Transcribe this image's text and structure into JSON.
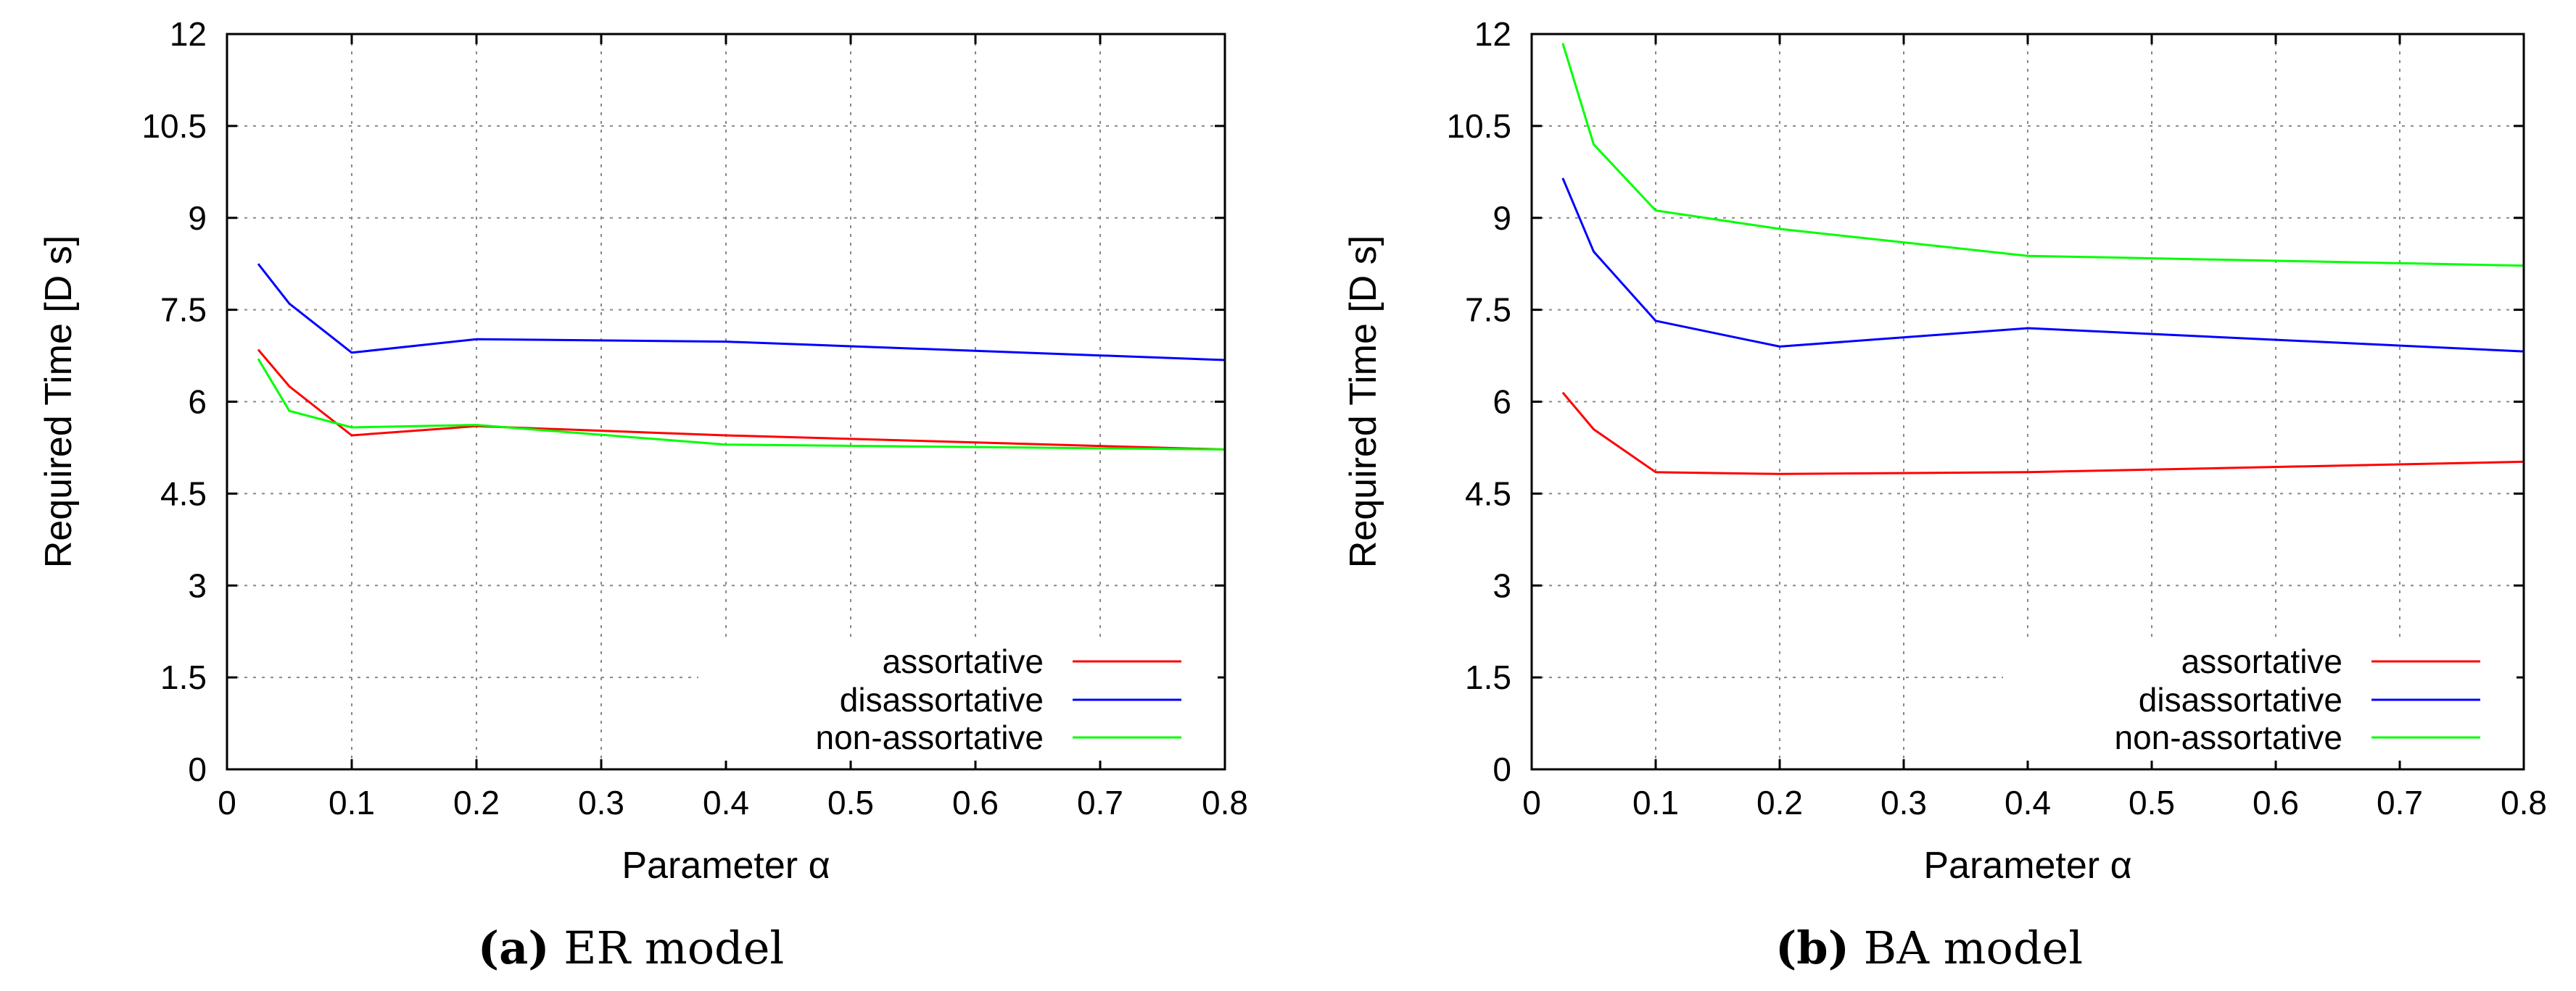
{
  "chart_data": [
    {
      "type": "line",
      "panel": "a",
      "caption_letter": "(a)",
      "caption_text": "ER model",
      "xlabel": "Parameter α",
      "ylabel": "Required Time [D s]",
      "xlim": [
        0,
        0.8
      ],
      "ylim": [
        0,
        12
      ],
      "xticks": [
        "0",
        "0.1",
        "0.2",
        "0.3",
        "0.4",
        "0.5",
        "0.6",
        "0.7",
        "0.8"
      ],
      "yticks": [
        "0",
        "1.5",
        "3",
        "4.5",
        "6",
        "7.5",
        "9",
        "10.5",
        "12"
      ],
      "grid": true,
      "legend_position": "bottom-right",
      "x": [
        0.025,
        0.05,
        0.1,
        0.2,
        0.4,
        0.8
      ],
      "series": [
        {
          "name": "assortative",
          "color": "#ff0000",
          "values": [
            6.85,
            6.25,
            5.45,
            5.6,
            5.45,
            5.22
          ]
        },
        {
          "name": "disassortative",
          "color": "#0000ff",
          "values": [
            8.25,
            7.6,
            6.8,
            7.02,
            6.98,
            6.68
          ]
        },
        {
          "name": "non-assortative",
          "color": "#00ff00",
          "values": [
            6.7,
            5.85,
            5.58,
            5.62,
            5.3,
            5.22
          ]
        }
      ]
    },
    {
      "type": "line",
      "panel": "b",
      "caption_letter": "(b)",
      "caption_text": "BA model",
      "xlabel": "Parameter α",
      "ylabel": "Required Time [D s]",
      "xlim": [
        0,
        0.8
      ],
      "ylim": [
        0,
        12
      ],
      "xticks": [
        "0",
        "0.1",
        "0.2",
        "0.3",
        "0.4",
        "0.5",
        "0.6",
        "0.7",
        "0.8"
      ],
      "yticks": [
        "0",
        "1.5",
        "3",
        "4.5",
        "6",
        "7.5",
        "9",
        "10.5",
        "12"
      ],
      "grid": true,
      "legend_position": "bottom-right",
      "x": [
        0.025,
        0.05,
        0.1,
        0.2,
        0.4,
        0.8
      ],
      "series": [
        {
          "name": "assortative",
          "color": "#ff0000",
          "values": [
            6.15,
            5.55,
            4.85,
            4.82,
            4.85,
            5.02
          ]
        },
        {
          "name": "disassortative",
          "color": "#0000ff",
          "values": [
            9.65,
            8.45,
            7.32,
            6.9,
            7.2,
            6.82
          ]
        },
        {
          "name": "non-assortative",
          "color": "#00ff00",
          "values": [
            11.85,
            10.2,
            9.12,
            8.82,
            8.38,
            8.22
          ]
        }
      ]
    }
  ]
}
